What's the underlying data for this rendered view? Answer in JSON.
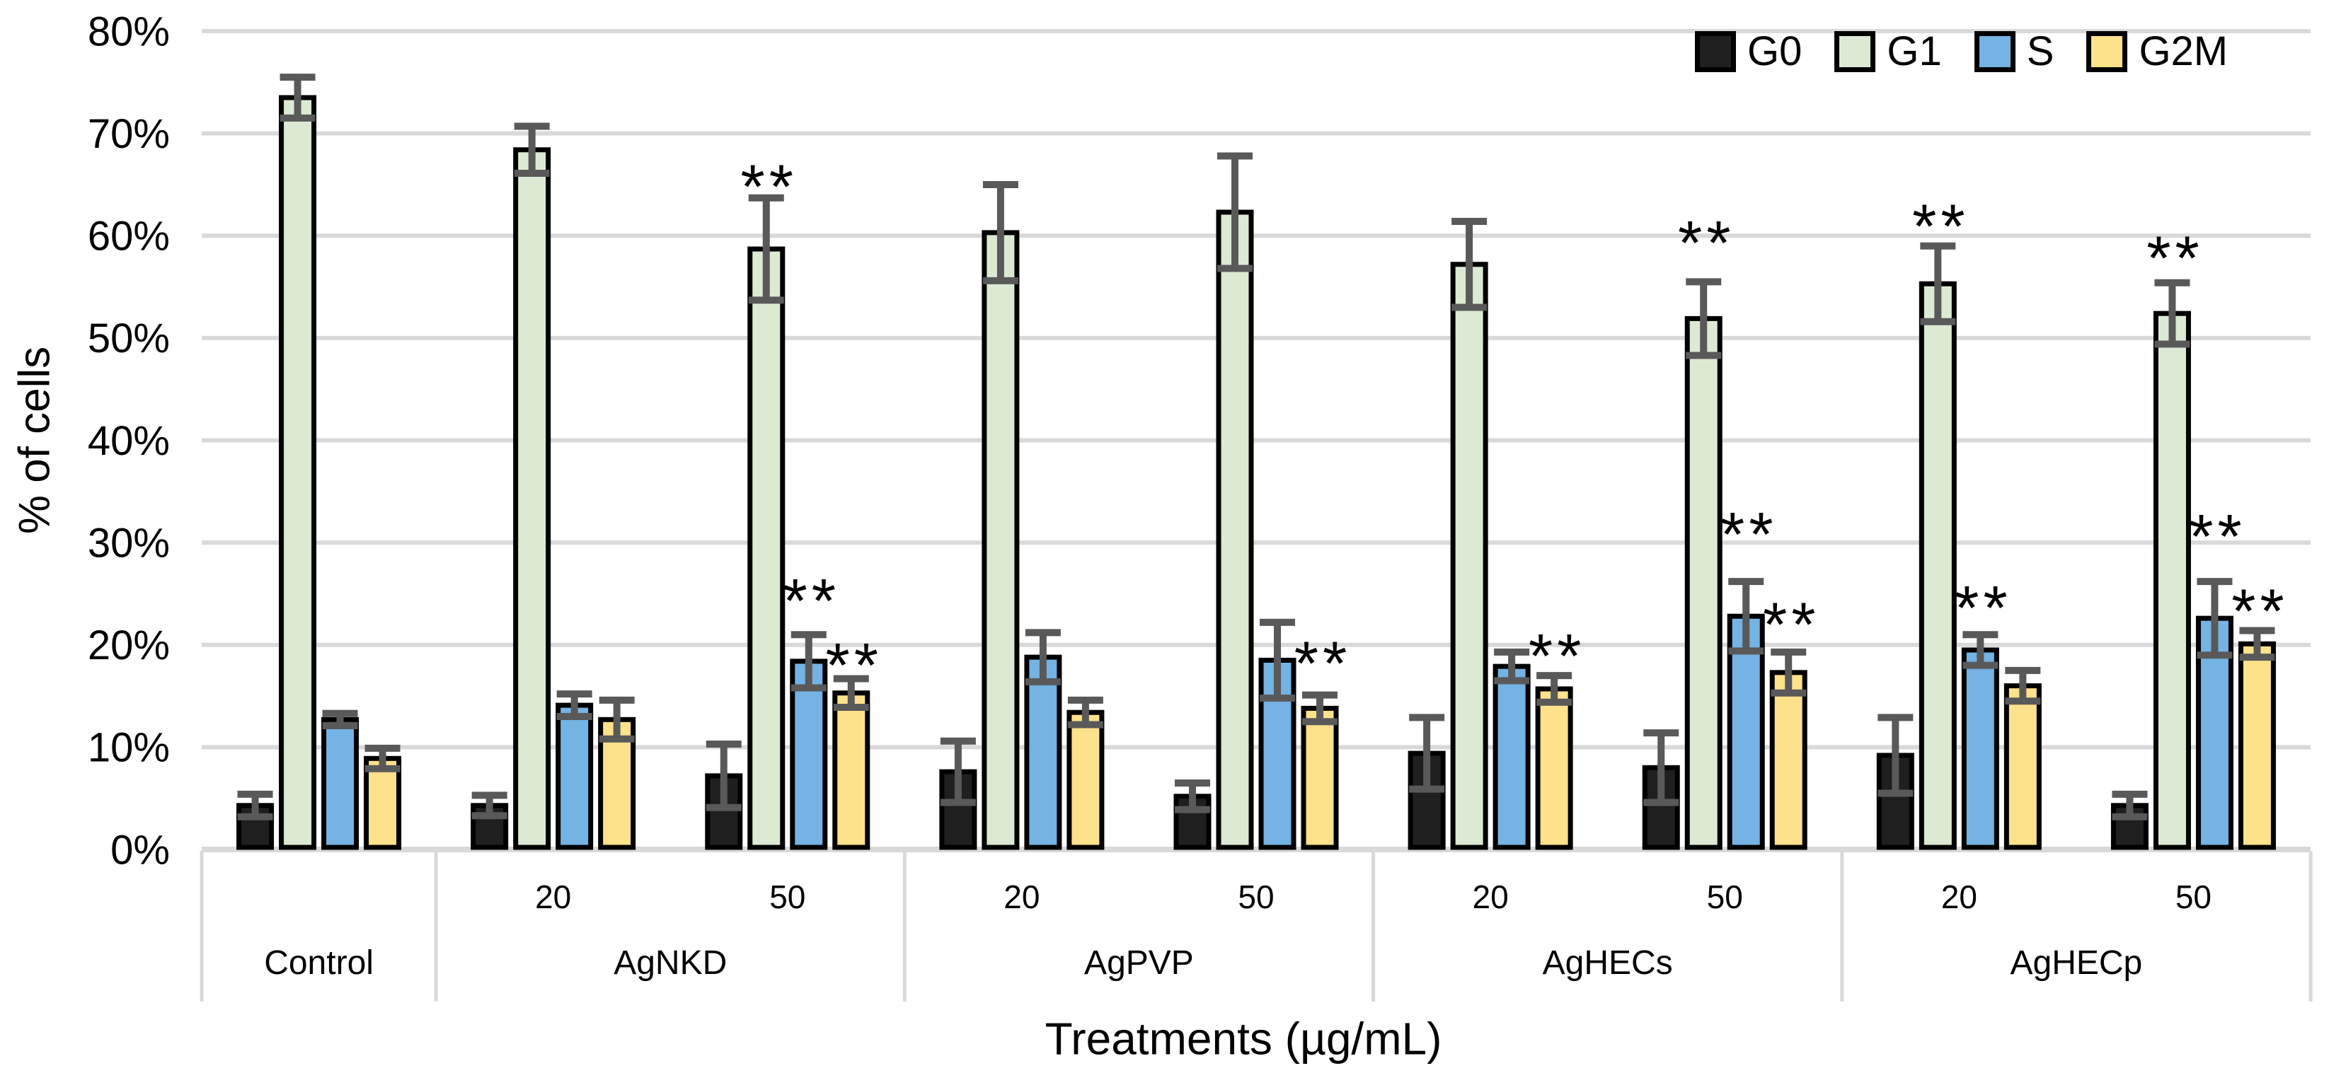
{
  "chart_data": {
    "type": "bar",
    "title": "",
    "xlabel": "Treatments (µg/mL)",
    "ylabel": "% of cells",
    "ylim": [
      0,
      80
    ],
    "y_tick_step": 10,
    "y_tick_suffix": "%",
    "grid": true,
    "legend_position": "top-right",
    "significance_symbol": "**",
    "series": [
      {
        "name": "G0",
        "color": "#1f1f1f"
      },
      {
        "name": "G1",
        "color": "#dcead4"
      },
      {
        "name": "S",
        "color": "#74b3e3"
      },
      {
        "name": "G2M",
        "color": "#fde18b"
      }
    ],
    "treatment_spans": [
      {
        "label": "Control",
        "slots": 1
      },
      {
        "label": "AgNKD",
        "slots": 2
      },
      {
        "label": "AgPVP",
        "slots": 2
      },
      {
        "label": "AgHECs",
        "slots": 2
      },
      {
        "label": "AgHECp",
        "slots": 2
      }
    ],
    "groups": [
      {
        "treatment": "Control",
        "dose": "",
        "bars": [
          {
            "series": "G0",
            "value": 4.3,
            "error": 1.1
          },
          {
            "series": "G1",
            "value": 73.5,
            "error": 2.0
          },
          {
            "series": "S",
            "value": 12.7,
            "error": 0.6
          },
          {
            "series": "G2M",
            "value": 8.9,
            "error": 1.0
          }
        ]
      },
      {
        "treatment": "AgNKD",
        "dose": "20",
        "bars": [
          {
            "series": "G0",
            "value": 4.3,
            "error": 1.0
          },
          {
            "series": "G1",
            "value": 68.4,
            "error": 2.3
          },
          {
            "series": "S",
            "value": 14.1,
            "error": 1.1
          },
          {
            "series": "G2M",
            "value": 12.7,
            "error": 1.9
          }
        ]
      },
      {
        "treatment": "AgNKD",
        "dose": "50",
        "bars": [
          {
            "series": "G0",
            "value": 7.2,
            "error": 3.1
          },
          {
            "series": "G1",
            "value": 58.7,
            "error": 5.0,
            "sig": true,
            "sig_y": 66.5
          },
          {
            "series": "S",
            "value": 18.4,
            "error": 2.6,
            "sig": true,
            "sig_y": 26.0
          },
          {
            "series": "G2M",
            "value": 15.3,
            "error": 1.4,
            "sig": true,
            "sig_y": 19.7
          }
        ]
      },
      {
        "treatment": "AgPVP",
        "dose": "20",
        "bars": [
          {
            "series": "G0",
            "value": 7.6,
            "error": 3.0
          },
          {
            "series": "G1",
            "value": 60.3,
            "error": 4.7
          },
          {
            "series": "S",
            "value": 18.8,
            "error": 2.4
          },
          {
            "series": "G2M",
            "value": 13.4,
            "error": 1.2
          }
        ]
      },
      {
        "treatment": "AgPVP",
        "dose": "50",
        "bars": [
          {
            "series": "G0",
            "value": 5.2,
            "error": 1.3
          },
          {
            "series": "G1",
            "value": 62.3,
            "error": 5.5
          },
          {
            "series": "S",
            "value": 18.5,
            "error": 3.7
          },
          {
            "series": "G2M",
            "value": 13.8,
            "error": 1.3,
            "sig": true,
            "sig_y": 19.9
          }
        ]
      },
      {
        "treatment": "AgHECs",
        "dose": "20",
        "bars": [
          {
            "series": "G0",
            "value": 9.4,
            "error": 3.5
          },
          {
            "series": "G1",
            "value": 57.2,
            "error": 4.2
          },
          {
            "series": "S",
            "value": 17.9,
            "error": 1.4
          },
          {
            "series": "G2M",
            "value": 15.7,
            "error": 1.3,
            "sig": true,
            "sig_y": 20.6
          }
        ]
      },
      {
        "treatment": "AgHECs",
        "dose": "50",
        "bars": [
          {
            "series": "G0",
            "value": 8.0,
            "error": 3.4
          },
          {
            "series": "G1",
            "value": 51.9,
            "error": 3.6,
            "sig": true,
            "sig_y": 61.0
          },
          {
            "series": "S",
            "value": 22.8,
            "error": 3.4,
            "sig": true,
            "sig_y": 32.5
          },
          {
            "series": "G2M",
            "value": 17.3,
            "error": 2.0,
            "sig": true,
            "sig_y": 23.7
          }
        ]
      },
      {
        "treatment": "AgHECp",
        "dose": "20",
        "bars": [
          {
            "series": "G0",
            "value": 9.2,
            "error": 3.7
          },
          {
            "series": "G1",
            "value": 55.3,
            "error": 3.7,
            "sig": true,
            "sig_y": 62.6
          },
          {
            "series": "S",
            "value": 19.5,
            "error": 1.5,
            "sig": true,
            "sig_y": 25.3
          },
          {
            "series": "G2M",
            "value": 16.0,
            "error": 1.5
          }
        ]
      },
      {
        "treatment": "AgHECp",
        "dose": "50",
        "bars": [
          {
            "series": "G0",
            "value": 4.3,
            "error": 1.1
          },
          {
            "series": "G1",
            "value": 52.4,
            "error": 3.0,
            "sig": true,
            "sig_y": 59.5
          },
          {
            "series": "S",
            "value": 22.6,
            "error": 3.6,
            "sig": true,
            "sig_y": 32.3
          },
          {
            "series": "G2M",
            "value": 20.1,
            "error": 1.3,
            "sig": true,
            "sig_y": 25.0
          }
        ]
      }
    ]
  },
  "colors": {
    "gridline": "#d9d9d9",
    "axis_line": "#d9d9d9",
    "divider": "#d9d9d9",
    "error_bar": "#595959",
    "text": "#000000",
    "background": "#ffffff"
  },
  "legend": {
    "items": [
      {
        "label": "G0",
        "color": "#1f1f1f"
      },
      {
        "label": "G1",
        "color": "#dcead4"
      },
      {
        "label": "S",
        "color": "#74b3e3"
      },
      {
        "label": "G2M",
        "color": "#fde18b"
      }
    ]
  }
}
